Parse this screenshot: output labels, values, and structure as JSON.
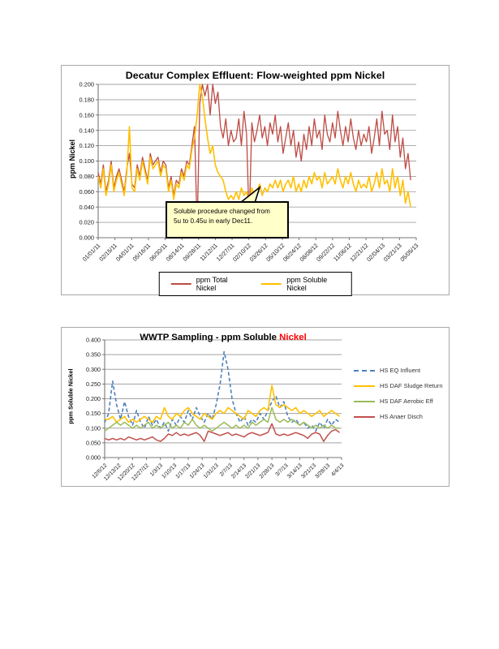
{
  "page": {
    "background": "#ffffff"
  },
  "chart_data": [
    {
      "type": "line",
      "title": "Decatur Complex Effluent:  Flow-weighted ppm Nickel",
      "ylabel": "ppm Nickel",
      "ylim": [
        0,
        0.2
      ],
      "yticklabels": [
        "0.000",
        "0.020",
        "0.040",
        "0.060",
        "0.080",
        "0.100",
        "0.120",
        "0.140",
        "0.160",
        "0.180",
        "0.200"
      ],
      "xlim": [
        0,
        855
      ],
      "x_step_days": 7,
      "xtick_interval_days": 45,
      "xticklabels": [
        "01/01/11",
        "02/15/11",
        "04/01/11",
        "05/16/11",
        "06/30/11",
        "08/14/11",
        "09/28/11",
        "11/12/11",
        "12/27/11",
        "02/10/12",
        "03/26/12",
        "05/10/12",
        "06/24/12",
        "08/08/12",
        "09/22/12",
        "11/06/12",
        "12/21/12",
        "02/04/13",
        "03/21/13",
        "05/05/13"
      ],
      "grid": true,
      "legend_position": "bottom",
      "annotation": {
        "line1": "Soluble procedure changed from",
        "line2": "5u to 0.45u in early Dec11.",
        "fill": "#FFFFC9"
      },
      "series": [
        {
          "name": "ppm Total Nickel",
          "color": "#BE4B44",
          "dash": null,
          "width": 1.3,
          "values": [
            0.085,
            0.07,
            0.095,
            0.06,
            0.075,
            0.1,
            0.065,
            0.08,
            0.09,
            0.075,
            0.06,
            0.09,
            0.11,
            0.07,
            0.065,
            0.095,
            0.08,
            0.105,
            0.09,
            0.075,
            0.11,
            0.095,
            0.1,
            0.105,
            0.085,
            0.1,
            0.095,
            0.065,
            0.08,
            0.055,
            0.075,
            0.07,
            0.09,
            0.08,
            0.1,
            0.095,
            0.12,
            0.145,
            0.01,
            0.175,
            0.2,
            0.185,
            0.2,
            0.16,
            0.2,
            0.175,
            0.19,
            0.145,
            0.13,
            0.155,
            0.12,
            0.14,
            0.125,
            0.13,
            0.155,
            0.12,
            0.165,
            0.135,
            0.02,
            0.15,
            0.125,
            0.14,
            0.16,
            0.13,
            0.145,
            0.12,
            0.15,
            0.135,
            0.16,
            0.125,
            0.145,
            0.11,
            0.13,
            0.15,
            0.12,
            0.14,
            0.105,
            0.125,
            0.1,
            0.135,
            0.115,
            0.145,
            0.12,
            0.155,
            0.13,
            0.14,
            0.115,
            0.16,
            0.135,
            0.125,
            0.15,
            0.13,
            0.165,
            0.14,
            0.12,
            0.145,
            0.125,
            0.155,
            0.13,
            0.115,
            0.14,
            0.12,
            0.135,
            0.125,
            0.145,
            0.11,
            0.13,
            0.155,
            0.12,
            0.165,
            0.135,
            0.14,
            0.115,
            0.16,
            0.125,
            0.145,
            0.105,
            0.13,
            0.09,
            0.11,
            0.075
          ]
        },
        {
          "name": "ppm Soluble Nickel",
          "color": "#FFC000",
          "dash": null,
          "width": 1.6,
          "values": [
            0.08,
            0.065,
            0.09,
            0.055,
            0.07,
            0.095,
            0.06,
            0.075,
            0.085,
            0.07,
            0.055,
            0.085,
            0.145,
            0.065,
            0.06,
            0.09,
            0.075,
            0.1,
            0.085,
            0.07,
            0.105,
            0.09,
            0.095,
            0.1,
            0.08,
            0.095,
            0.09,
            0.06,
            0.075,
            0.05,
            0.07,
            0.065,
            0.085,
            0.075,
            0.095,
            0.09,
            0.115,
            0.13,
            0.16,
            0.2,
            0.185,
            0.155,
            0.13,
            0.11,
            0.12,
            0.095,
            0.085,
            0.08,
            0.075,
            0.06,
            0.05,
            0.055,
            0.05,
            0.06,
            0.05,
            0.065,
            0.055,
            0.06,
            0.045,
            0.065,
            0.055,
            0.06,
            0.07,
            0.055,
            0.065,
            0.06,
            0.07,
            0.065,
            0.075,
            0.065,
            0.075,
            0.06,
            0.07,
            0.075,
            0.065,
            0.08,
            0.06,
            0.07,
            0.06,
            0.075,
            0.065,
            0.08,
            0.07,
            0.085,
            0.075,
            0.08,
            0.065,
            0.085,
            0.07,
            0.075,
            0.08,
            0.07,
            0.09,
            0.075,
            0.065,
            0.08,
            0.07,
            0.085,
            0.07,
            0.06,
            0.075,
            0.065,
            0.07,
            0.065,
            0.08,
            0.06,
            0.07,
            0.085,
            0.065,
            0.09,
            0.07,
            0.075,
            0.06,
            0.09,
            0.065,
            0.08,
            0.055,
            0.075,
            0.045,
            0.06,
            0.04
          ]
        }
      ]
    },
    {
      "type": "line",
      "title_prefix": "WWTP Sampling - ppm Soluble ",
      "title_accent": "Nickel",
      "title_accent_color": "#FF0000",
      "ylabel": "ppm Soluble Nickel",
      "ylim": [
        0,
        0.4
      ],
      "yticklabels": [
        "0.000",
        "0.050",
        "0.100",
        "0.150",
        "0.200",
        "0.250",
        "0.300",
        "0.350",
        "0.400"
      ],
      "xlim": [
        0,
        119
      ],
      "x_step_days": 2,
      "xtick_interval_days": 7,
      "xticklabels": [
        "12/6/12",
        "12/13/12",
        "12/20/12",
        "12/27/12",
        "1/3/13",
        "1/10/13",
        "1/17/13",
        "1/24/13",
        "1/31/13",
        "2/7/13",
        "2/14/13",
        "2/21/13",
        "2/28/13",
        "3/7/13",
        "3/14/13",
        "3/21/13",
        "3/28/13",
        "4/4/13"
      ],
      "grid": true,
      "legend_position": "right",
      "series": [
        {
          "name": "HS EQ Influent",
          "color": "#4F81BD",
          "dash": "4.5 2.8",
          "width": 1.6,
          "values": [
            0.12,
            0.15,
            0.26,
            0.18,
            0.13,
            0.19,
            0.14,
            0.11,
            0.16,
            0.12,
            0.1,
            0.14,
            0.11,
            0.13,
            0.1,
            0.12,
            0.09,
            0.13,
            0.11,
            0.14,
            0.12,
            0.16,
            0.13,
            0.17,
            0.14,
            0.12,
            0.15,
            0.13,
            0.18,
            0.25,
            0.36,
            0.3,
            0.2,
            0.15,
            0.12,
            0.14,
            0.11,
            0.13,
            0.12,
            0.15,
            0.13,
            0.16,
            0.19,
            0.21,
            0.17,
            0.19,
            0.14,
            0.12,
            0.13,
            0.11,
            0.12,
            0.1,
            0.11,
            0.09,
            0.12,
            0.1,
            0.13,
            0.11,
            0.13,
            0.12
          ]
        },
        {
          "name": "HS DAF Sludge Return",
          "color": "#FFC000",
          "dash": null,
          "width": 1.6,
          "values": [
            0.13,
            0.13,
            0.14,
            0.12,
            0.13,
            0.14,
            0.12,
            0.13,
            0.12,
            0.13,
            0.14,
            0.13,
            0.12,
            0.14,
            0.13,
            0.17,
            0.14,
            0.13,
            0.15,
            0.14,
            0.16,
            0.17,
            0.15,
            0.14,
            0.13,
            0.15,
            0.14,
            0.13,
            0.15,
            0.16,
            0.15,
            0.17,
            0.16,
            0.15,
            0.14,
            0.13,
            0.16,
            0.15,
            0.14,
            0.16,
            0.17,
            0.16,
            0.245,
            0.18,
            0.17,
            0.18,
            0.17,
            0.16,
            0.17,
            0.15,
            0.16,
            0.15,
            0.14,
            0.15,
            0.16,
            0.14,
            0.15,
            0.16,
            0.15,
            0.14
          ]
        },
        {
          "name": "HS DAF Aerobic Eff",
          "color": "#9BBB59",
          "dash": null,
          "width": 1.5,
          "values": [
            0.09,
            0.1,
            0.11,
            0.12,
            0.11,
            0.12,
            0.11,
            0.1,
            0.11,
            0.1,
            0.11,
            0.12,
            0.1,
            0.11,
            0.1,
            0.11,
            0.12,
            0.1,
            0.11,
            0.1,
            0.12,
            0.11,
            0.13,
            0.11,
            0.1,
            0.11,
            0.1,
            0.09,
            0.1,
            0.11,
            0.12,
            0.11,
            0.1,
            0.11,
            0.1,
            0.11,
            0.1,
            0.12,
            0.11,
            0.12,
            0.13,
            0.12,
            0.17,
            0.13,
            0.12,
            0.13,
            0.12,
            0.13,
            0.12,
            0.11,
            0.12,
            0.11,
            0.1,
            0.11,
            0.1,
            0.11,
            0.1,
            0.11,
            0.1,
            0.1
          ]
        },
        {
          "name": "HS Anaer Disch",
          "color": "#C0504D",
          "dash": null,
          "width": 1.5,
          "values": [
            0.065,
            0.06,
            0.065,
            0.06,
            0.065,
            0.06,
            0.07,
            0.065,
            0.06,
            0.065,
            0.06,
            0.065,
            0.07,
            0.06,
            0.055,
            0.065,
            0.08,
            0.075,
            0.085,
            0.075,
            0.08,
            0.075,
            0.08,
            0.085,
            0.075,
            0.055,
            0.09,
            0.085,
            0.08,
            0.075,
            0.08,
            0.085,
            0.075,
            0.08,
            0.075,
            0.07,
            0.08,
            0.085,
            0.08,
            0.075,
            0.08,
            0.085,
            0.115,
            0.08,
            0.075,
            0.08,
            0.075,
            0.08,
            0.085,
            0.08,
            0.075,
            0.065,
            0.08,
            0.085,
            0.08,
            0.055,
            0.075,
            0.09,
            0.095,
            0.085
          ]
        }
      ]
    }
  ]
}
